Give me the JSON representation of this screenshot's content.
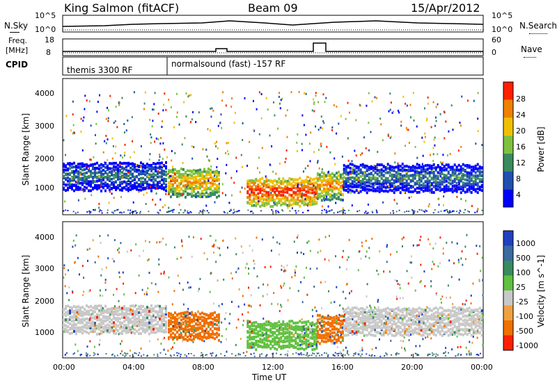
{
  "header": {
    "station": "King Salmon (fitACF)",
    "beam": "Beam 09",
    "date": "15/Apr/2012"
  },
  "noise_panel": {
    "left_label": "N.Sky",
    "right_label": "N.Search",
    "ticks_left": [
      "10^5",
      "10^0"
    ],
    "ticks_right": [
      "10^5",
      "10^0"
    ]
  },
  "freq_panel": {
    "left_label_1": "Freq.",
    "left_label_2": "[MHz]",
    "right_label": "Nave",
    "ticks_left": [
      "18",
      "8"
    ],
    "ticks_right": [
      "60",
      "0"
    ]
  },
  "cpid_panel": {
    "label": "CPID",
    "program_1": "themis 3300 RF",
    "program_2": "normalsound (fast) -157 RF"
  },
  "power_panel": {
    "ylabel": "Slant Range [km]",
    "yticks": [
      "4000",
      "3000",
      "2000",
      "1000"
    ],
    "colorbar_label": "Power [dB]",
    "colorbar_ticks": [
      "28",
      "24",
      "20",
      "16",
      "12",
      "8",
      "4"
    ],
    "colors": [
      "#0000ff",
      "#2050b0",
      "#3a8a60",
      "#7fc040",
      "#f0c000",
      "#f08000",
      "#ff2000"
    ]
  },
  "velocity_panel": {
    "ylabel": "Slant Range [km]",
    "yticks": [
      "4000",
      "3000",
      "2000",
      "1000"
    ],
    "colorbar_label": "Velocity [m s^-1]",
    "colorbar_ticks": [
      "1000",
      "500",
      "100",
      "25",
      "-25",
      "-100",
      "-500",
      "-1000"
    ],
    "colors": [
      "#2040c0",
      "#3a6aa0",
      "#3a8a60",
      "#60c040",
      "#c8c8c8",
      "#f0a040",
      "#f07000",
      "#ff2000"
    ]
  },
  "x_axis": {
    "label": "Time UT",
    "ticks": [
      "00:00",
      "04:00",
      "08:00",
      "12:00",
      "16:00",
      "20:00",
      "00:00"
    ]
  },
  "chart_data": {
    "type": "heatmap",
    "title": "King Salmon (fitACF)",
    "xlabel": "Time UT",
    "ylabel": "Slant Range [km]",
    "xlim": [
      0,
      24
    ],
    "ylim": [
      180,
      4600
    ],
    "power_bands": [
      {
        "t_start": 0,
        "t_end": 6,
        "range_center": 1500,
        "level": 2
      },
      {
        "t_start": 6,
        "t_end": 9,
        "range_center": 1300,
        "level": 5
      },
      {
        "t_start": 10.5,
        "t_end": 14.5,
        "range_center": 1000,
        "level": 6
      },
      {
        "t_start": 14.5,
        "t_end": 16,
        "range_center": 1200,
        "level": 5
      },
      {
        "t_start": 16,
        "t_end": 24,
        "range_center": 1450,
        "level": 2
      }
    ]
  }
}
